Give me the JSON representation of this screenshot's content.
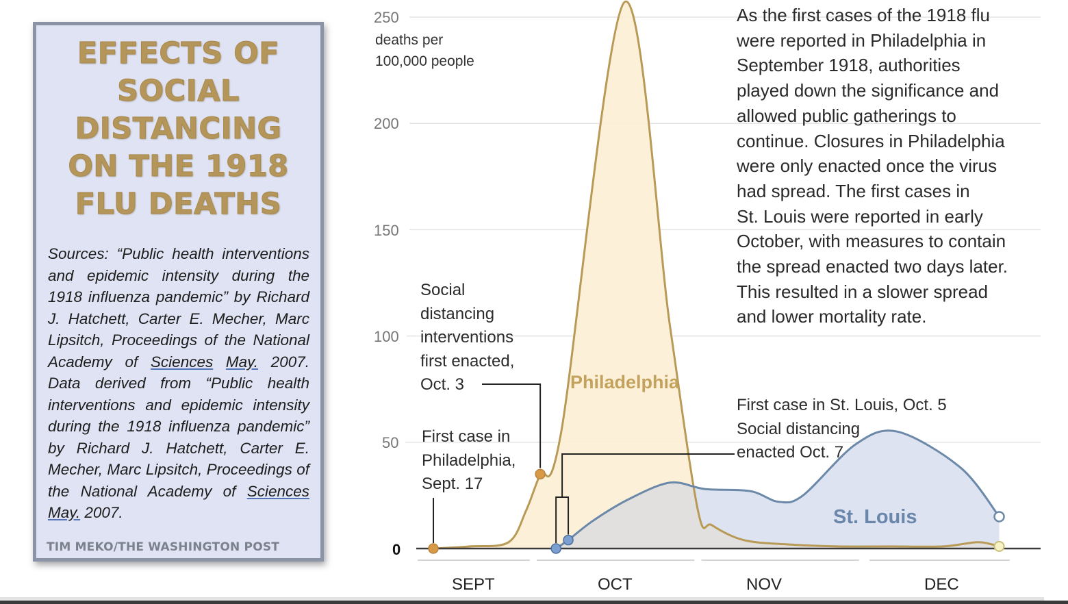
{
  "panel": {
    "title_lines": [
      "EFFECTS OF",
      "SOCIAL",
      "DISTANCING",
      "ON THE 1918",
      "FLU DEATHS"
    ],
    "sources_parts": [
      "Sources: “Public health interventions and epidemic intensity during the 1918 influenza pandemic” by Richard J. Hatchett, Carter E. Mecher, Marc Lipsitch, Proceedings of the National Academy of ",
      "Sciences",
      " ",
      "May.",
      " 2007. Data derived from “Public health interventions and epidemic intensity during the 1918 influenza pandemic” by Richard J. Hatchett, Carter E. Mecher, Marc Lipsitch, Proceedings of the National Academy of ",
      "Sciences",
      " ",
      "May.",
      " 2007."
    ],
    "credit": "TIM MEKO/THE WASHINGTON POST"
  },
  "description_lines": [
    "As the first cases of the 1918 flu",
    "were reported in Philadelphia in",
    "September 1918, authorities",
    "played down the significance and",
    "allowed public gatherings to",
    "continue. Closures in Philadelphia",
    "were only enacted once the virus",
    "had spread. The first cases in",
    "St. Louis were reported in early",
    "October, with measures to contain",
    "the spread enacted two days later.",
    "This resulted in a slower spread",
    "and lower mortality rate."
  ],
  "colors": {
    "philadelphia_line": "#b89a56",
    "philadelphia_fill": "#fcefd6",
    "philadelphia_dot": "#d99a48",
    "stlouis_line": "#6c88a8",
    "stlouis_fill": "#dde3f1",
    "overlap_fill": "#e2e0df",
    "stlouis_dot": "#7a9fd0"
  },
  "chart_data": {
    "type": "area",
    "title": "",
    "xlabel": "",
    "ylabel": "deaths per 100,000 people",
    "ylabel_lines": [
      "deaths per",
      "100,000 people"
    ],
    "x_unit": "weeks since Sept. 1, 1918",
    "xlim": [
      0,
      17
    ],
    "ylim": [
      0,
      250
    ],
    "yticks": [
      0,
      50,
      100,
      150,
      200,
      250
    ],
    "ytick_labels": [
      "0",
      "50",
      "100",
      "150",
      "200",
      "250"
    ],
    "month_labels": [
      "SEPT",
      "OCT",
      "NOV",
      "DEC"
    ],
    "month_ranges": [
      [
        0,
        3.2
      ],
      [
        3.4,
        7.9
      ],
      [
        8.1,
        12.6
      ],
      [
        12.9,
        16.9
      ]
    ],
    "grid": true,
    "series": [
      {
        "name": "Philadelphia",
        "x": [
          0.45,
          1.5,
          2.6,
          3.1,
          3.5,
          4.1,
          5.9,
          7.2,
          8.0,
          8.4,
          9.3,
          10.5,
          12.0,
          13.5,
          15.0,
          16.0,
          16.6
        ],
        "values": [
          0,
          1,
          3,
          18,
          35,
          55,
          257,
          105,
          18,
          11,
          4,
          2,
          1,
          1,
          1,
          3,
          1
        ]
      },
      {
        "name": "St. Louis",
        "x": [
          3.95,
          4.3,
          5.0,
          6.0,
          7.2,
          8.2,
          9.5,
          10.3,
          11.0,
          12.5,
          13.7,
          15.5,
          16.6
        ],
        "values": [
          0,
          4,
          13,
          23,
          31,
          28,
          27,
          22,
          25,
          49,
          55,
          38,
          15
        ]
      }
    ],
    "annotations": [
      {
        "id": "phl_first_case",
        "series": "Philadelphia",
        "x": 0.45,
        "y": 0,
        "lines": [
          "First case in",
          "Philadelphia,",
          "Sept. 17"
        ]
      },
      {
        "id": "phl_distancing",
        "series": "Philadelphia",
        "x": 3.5,
        "y": 35,
        "lines": [
          "Social",
          "distancing",
          "interventions",
          "first enacted,",
          "Oct. 3"
        ]
      },
      {
        "id": "stl_events",
        "series": "St. Louis",
        "x": [
          3.95,
          4.3
        ],
        "y": [
          0,
          4
        ],
        "lines": [
          "First case in St. Louis, Oct. 5",
          "Social distancing",
          "enacted Oct. 7"
        ]
      }
    ],
    "series_labels": [
      "Philadelphia",
      "St. Louis"
    ]
  }
}
